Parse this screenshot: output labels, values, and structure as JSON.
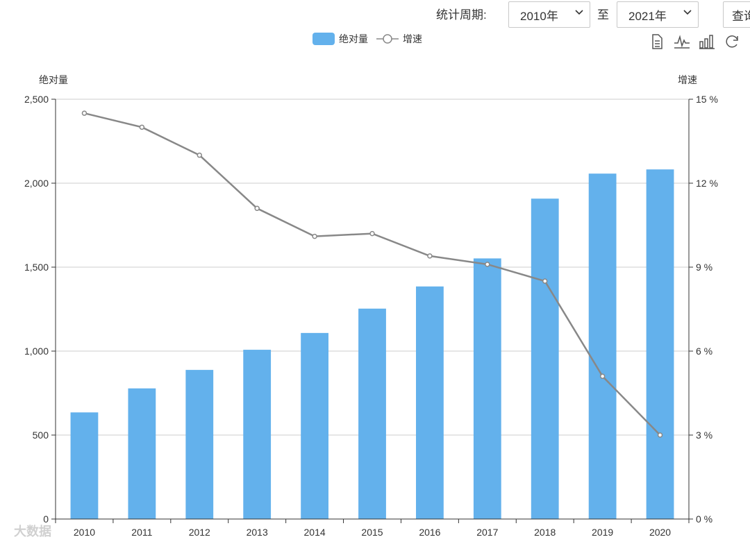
{
  "toolbar": {
    "period_label": "统计周期:",
    "from_value": "2010年",
    "to_label": "至",
    "to_value": "2021年",
    "query_label": "查询"
  },
  "legend": {
    "bar_label": "绝对量",
    "line_label": "增速"
  },
  "tools": [
    "data-view-icon",
    "line-chart-icon",
    "bar-chart-icon",
    "restore-icon",
    "save-image-icon"
  ],
  "watermark": "大数据",
  "colors": {
    "bar": "#63b1ec",
    "line": "#888888",
    "grid": "#cccccc",
    "axis": "#333333"
  },
  "chart_data": {
    "type": "bar",
    "categories": [
      "2010",
      "2011",
      "2012",
      "2013",
      "2014",
      "2015",
      "2016",
      "2017",
      "2018",
      "2019",
      "2020"
    ],
    "series": [
      {
        "name": "绝对量",
        "type": "bar",
        "axis": "left",
        "values": [
          635,
          778,
          888,
          1008,
          1108,
          1253,
          1385,
          1552,
          1908,
          2057,
          2082
        ]
      },
      {
        "name": "增速",
        "type": "line",
        "axis": "right",
        "values": [
          14.5,
          14.0,
          13.0,
          11.1,
          10.1,
          10.2,
          9.4,
          9.1,
          8.5,
          5.1,
          3.0
        ]
      }
    ],
    "ylabel_left": "绝对量",
    "ylabel_right": "增速",
    "ylim_left": [
      0,
      2500
    ],
    "yticks_left": [
      "0",
      "500",
      "1,000",
      "1,500",
      "2,000",
      "2,500"
    ],
    "ylim_right": [
      0,
      15
    ],
    "yticks_right": [
      "0 %",
      "3 %",
      "6 %",
      "9 %",
      "12 %",
      "15 %"
    ],
    "grid": true,
    "legend_position": "top-center"
  }
}
